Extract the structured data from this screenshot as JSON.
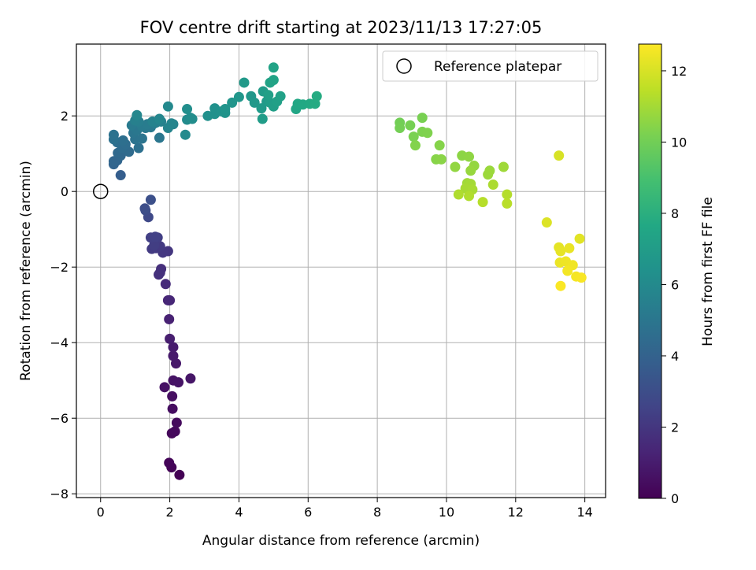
{
  "chart_data": {
    "type": "scatter",
    "title": "FOV centre drift starting at 2023/11/13 17:27:05",
    "xlabel": "Angular distance from reference (arcmin)",
    "ylabel": "Rotation from reference (arcmin)",
    "xlim": [
      -0.7,
      14.6
    ],
    "ylim": [
      -8.1,
      3.9
    ],
    "xticks": [
      "0",
      "2",
      "4",
      "6",
      "8",
      "10",
      "12",
      "14"
    ],
    "yticks": [
      "2",
      "0",
      "−2",
      "−4",
      "−6",
      "−8"
    ],
    "grid": true,
    "legend": {
      "placement": "top-right",
      "entries": [
        "Reference platepar"
      ]
    },
    "reference_point": {
      "x": 0,
      "y": 0,
      "marker": "open circle",
      "label": "Reference platepar"
    },
    "colorbar": {
      "label": "Hours from first FF file",
      "colormap": "viridis",
      "range": [
        0,
        12.75
      ],
      "ticks": [
        "0",
        "2",
        "4",
        "6",
        "8",
        "10",
        "12"
      ]
    },
    "points": [
      {
        "x": 2.28,
        "y": -7.5,
        "t": 0.05
      },
      {
        "x": 2.05,
        "y": -7.3,
        "t": 0.1
      },
      {
        "x": 1.98,
        "y": -7.18,
        "t": 0.15
      },
      {
        "x": 2.06,
        "y": -6.4,
        "t": 0.25
      },
      {
        "x": 2.15,
        "y": -6.35,
        "t": 0.3
      },
      {
        "x": 2.2,
        "y": -6.12,
        "t": 0.35
      },
      {
        "x": 2.08,
        "y": -5.75,
        "t": 0.45
      },
      {
        "x": 2.07,
        "y": -5.42,
        "t": 0.5
      },
      {
        "x": 1.85,
        "y": -5.18,
        "t": 0.6
      },
      {
        "x": 2.1,
        "y": -5.0,
        "t": 0.65
      },
      {
        "x": 2.25,
        "y": -5.05,
        "t": 0.7
      },
      {
        "x": 2.6,
        "y": -4.95,
        "t": 0.75
      },
      {
        "x": 2.18,
        "y": -4.55,
        "t": 0.85
      },
      {
        "x": 2.1,
        "y": -4.35,
        "t": 0.9
      },
      {
        "x": 2.1,
        "y": -4.12,
        "t": 0.95
      },
      {
        "x": 2.0,
        "y": -3.9,
        "t": 1.05
      },
      {
        "x": 1.98,
        "y": -3.38,
        "t": 1.2
      },
      {
        "x": 1.95,
        "y": -2.88,
        "t": 1.35
      },
      {
        "x": 2.0,
        "y": -2.88,
        "t": 1.4
      },
      {
        "x": 1.88,
        "y": -2.45,
        "t": 1.55
      },
      {
        "x": 1.75,
        "y": -2.05,
        "t": 1.7
      },
      {
        "x": 1.68,
        "y": -2.2,
        "t": 1.75
      },
      {
        "x": 1.72,
        "y": -2.15,
        "t": 1.8
      },
      {
        "x": 1.95,
        "y": -1.58,
        "t": 2.0
      },
      {
        "x": 1.8,
        "y": -1.62,
        "t": 2.05
      },
      {
        "x": 1.6,
        "y": -1.5,
        "t": 2.1
      },
      {
        "x": 1.72,
        "y": -1.45,
        "t": 2.15
      },
      {
        "x": 1.48,
        "y": -1.52,
        "t": 2.2
      },
      {
        "x": 1.55,
        "y": -1.42,
        "t": 2.3
      },
      {
        "x": 1.65,
        "y": -1.22,
        "t": 2.35
      },
      {
        "x": 1.45,
        "y": -1.22,
        "t": 2.4
      },
      {
        "x": 1.58,
        "y": -1.2,
        "t": 2.45
      },
      {
        "x": 1.38,
        "y": -0.68,
        "t": 2.8
      },
      {
        "x": 1.3,
        "y": -0.5,
        "t": 2.95
      },
      {
        "x": 1.28,
        "y": -0.45,
        "t": 3.0
      },
      {
        "x": 1.45,
        "y": -0.22,
        "t": 3.1
      },
      {
        "x": 0.58,
        "y": 0.43,
        "t": 3.8
      },
      {
        "x": 0.38,
        "y": 0.72,
        "t": 4.1
      },
      {
        "x": 0.48,
        "y": 0.82,
        "t": 4.15
      },
      {
        "x": 0.38,
        "y": 0.8,
        "t": 4.2
      },
      {
        "x": 0.58,
        "y": 0.95,
        "t": 4.3
      },
      {
        "x": 0.5,
        "y": 1.02,
        "t": 4.35
      },
      {
        "x": 0.82,
        "y": 1.05,
        "t": 4.45
      },
      {
        "x": 0.62,
        "y": 1.15,
        "t": 4.5
      },
      {
        "x": 0.72,
        "y": 1.25,
        "t": 4.55
      },
      {
        "x": 0.48,
        "y": 1.3,
        "t": 4.6
      },
      {
        "x": 0.65,
        "y": 1.35,
        "t": 4.65
      },
      {
        "x": 1.1,
        "y": 1.15,
        "t": 4.7
      },
      {
        "x": 0.38,
        "y": 1.38,
        "t": 4.75
      },
      {
        "x": 0.38,
        "y": 1.5,
        "t": 4.8
      },
      {
        "x": 1.0,
        "y": 1.38,
        "t": 4.85
      },
      {
        "x": 1.2,
        "y": 1.4,
        "t": 4.9
      },
      {
        "x": 0.95,
        "y": 1.55,
        "t": 4.95
      },
      {
        "x": 1.7,
        "y": 1.42,
        "t": 5.0
      },
      {
        "x": 1.05,
        "y": 1.62,
        "t": 5.05
      },
      {
        "x": 1.3,
        "y": 1.68,
        "t": 5.1
      },
      {
        "x": 1.45,
        "y": 1.7,
        "t": 5.15
      },
      {
        "x": 0.9,
        "y": 1.75,
        "t": 5.2
      },
      {
        "x": 1.2,
        "y": 1.72,
        "t": 5.25
      },
      {
        "x": 1.35,
        "y": 1.78,
        "t": 5.3
      },
      {
        "x": 1.55,
        "y": 1.8,
        "t": 5.35
      },
      {
        "x": 1.1,
        "y": 1.85,
        "t": 5.4
      },
      {
        "x": 1.6,
        "y": 1.82,
        "t": 5.45
      },
      {
        "x": 1.0,
        "y": 1.88,
        "t": 5.5
      },
      {
        "x": 1.75,
        "y": 1.85,
        "t": 5.55
      },
      {
        "x": 1.5,
        "y": 1.85,
        "t": 5.6
      },
      {
        "x": 2.1,
        "y": 1.78,
        "t": 5.65
      },
      {
        "x": 1.95,
        "y": 1.68,
        "t": 5.7
      },
      {
        "x": 2.05,
        "y": 1.8,
        "t": 5.75
      },
      {
        "x": 1.7,
        "y": 1.92,
        "t": 5.8
      },
      {
        "x": 1.05,
        "y": 2.02,
        "t": 5.85
      },
      {
        "x": 1.95,
        "y": 2.25,
        "t": 5.95
      },
      {
        "x": 2.45,
        "y": 1.5,
        "t": 6.0
      },
      {
        "x": 2.5,
        "y": 1.9,
        "t": 6.05
      },
      {
        "x": 2.6,
        "y": 1.95,
        "t": 6.1
      },
      {
        "x": 2.65,
        "y": 1.92,
        "t": 6.15
      },
      {
        "x": 2.5,
        "y": 2.18,
        "t": 6.2
      },
      {
        "x": 3.1,
        "y": 2.0,
        "t": 6.3
      },
      {
        "x": 3.3,
        "y": 2.05,
        "t": 6.35
      },
      {
        "x": 3.3,
        "y": 2.2,
        "t": 6.4
      },
      {
        "x": 3.5,
        "y": 2.12,
        "t": 6.45
      },
      {
        "x": 3.6,
        "y": 2.08,
        "t": 6.5
      },
      {
        "x": 3.6,
        "y": 2.18,
        "t": 6.55
      },
      {
        "x": 3.8,
        "y": 2.35,
        "t": 6.6
      },
      {
        "x": 4.0,
        "y": 2.5,
        "t": 6.65
      },
      {
        "x": 4.35,
        "y": 2.52,
        "t": 6.7
      },
      {
        "x": 4.45,
        "y": 2.35,
        "t": 6.75
      },
      {
        "x": 4.15,
        "y": 2.88,
        "t": 6.8
      },
      {
        "x": 4.65,
        "y": 2.2,
        "t": 6.85
      },
      {
        "x": 4.8,
        "y": 2.38,
        "t": 6.9
      },
      {
        "x": 4.7,
        "y": 2.65,
        "t": 6.95
      },
      {
        "x": 4.68,
        "y": 1.92,
        "t": 7.0
      },
      {
        "x": 4.9,
        "y": 2.35,
        "t": 7.05
      },
      {
        "x": 5.0,
        "y": 2.25,
        "t": 7.1
      },
      {
        "x": 4.85,
        "y": 2.55,
        "t": 7.15
      },
      {
        "x": 5.1,
        "y": 2.38,
        "t": 7.2
      },
      {
        "x": 5.2,
        "y": 2.52,
        "t": 7.25
      },
      {
        "x": 4.9,
        "y": 2.88,
        "t": 7.3
      },
      {
        "x": 5.0,
        "y": 2.95,
        "t": 7.35
      },
      {
        "x": 5.0,
        "y": 3.28,
        "t": 7.4
      },
      {
        "x": 5.65,
        "y": 2.18,
        "t": 7.55
      },
      {
        "x": 5.7,
        "y": 2.32,
        "t": 7.6
      },
      {
        "x": 5.85,
        "y": 2.3,
        "t": 7.65
      },
      {
        "x": 6.05,
        "y": 2.32,
        "t": 7.7
      },
      {
        "x": 6.2,
        "y": 2.32,
        "t": 7.75
      },
      {
        "x": 6.25,
        "y": 2.52,
        "t": 7.8
      },
      {
        "x": 8.65,
        "y": 1.82,
        "t": 10.0
      },
      {
        "x": 8.65,
        "y": 1.68,
        "t": 10.05
      },
      {
        "x": 8.95,
        "y": 1.75,
        "t": 10.1
      },
      {
        "x": 9.3,
        "y": 1.95,
        "t": 10.15
      },
      {
        "x": 9.05,
        "y": 1.45,
        "t": 10.2
      },
      {
        "x": 9.3,
        "y": 1.58,
        "t": 10.25
      },
      {
        "x": 9.45,
        "y": 1.55,
        "t": 10.3
      },
      {
        "x": 9.1,
        "y": 1.22,
        "t": 10.35
      },
      {
        "x": 9.8,
        "y": 1.22,
        "t": 10.4
      },
      {
        "x": 9.7,
        "y": 0.85,
        "t": 10.45
      },
      {
        "x": 9.85,
        "y": 0.85,
        "t": 10.5
      },
      {
        "x": 10.45,
        "y": 0.95,
        "t": 10.55
      },
      {
        "x": 10.65,
        "y": 0.92,
        "t": 10.6
      },
      {
        "x": 10.25,
        "y": 0.65,
        "t": 10.65
      },
      {
        "x": 10.8,
        "y": 0.68,
        "t": 10.7
      },
      {
        "x": 10.7,
        "y": 0.55,
        "t": 10.75
      },
      {
        "x": 11.25,
        "y": 0.55,
        "t": 10.8
      },
      {
        "x": 11.2,
        "y": 0.45,
        "t": 10.85
      },
      {
        "x": 11.65,
        "y": 0.65,
        "t": 10.9
      },
      {
        "x": 10.6,
        "y": 0.22,
        "t": 10.95
      },
      {
        "x": 10.7,
        "y": 0.2,
        "t": 11.0
      },
      {
        "x": 10.55,
        "y": 0.08,
        "t": 11.05
      },
      {
        "x": 10.75,
        "y": 0.05,
        "t": 11.1
      },
      {
        "x": 11.35,
        "y": 0.18,
        "t": 11.15
      },
      {
        "x": 10.35,
        "y": -0.08,
        "t": 11.2
      },
      {
        "x": 10.65,
        "y": -0.12,
        "t": 11.25
      },
      {
        "x": 11.75,
        "y": -0.08,
        "t": 11.3
      },
      {
        "x": 11.05,
        "y": -0.28,
        "t": 11.35
      },
      {
        "x": 11.75,
        "y": -0.32,
        "t": 11.4
      },
      {
        "x": 13.25,
        "y": 0.95,
        "t": 12.0
      },
      {
        "x": 12.9,
        "y": -0.82,
        "t": 12.1
      },
      {
        "x": 13.85,
        "y": -1.25,
        "t": 12.2
      },
      {
        "x": 13.25,
        "y": -1.48,
        "t": 12.25
      },
      {
        "x": 13.3,
        "y": -1.58,
        "t": 12.3
      },
      {
        "x": 13.55,
        "y": -1.5,
        "t": 12.35
      },
      {
        "x": 13.28,
        "y": -1.88,
        "t": 12.4
      },
      {
        "x": 13.45,
        "y": -1.85,
        "t": 12.45
      },
      {
        "x": 13.65,
        "y": -1.95,
        "t": 12.5
      },
      {
        "x": 13.5,
        "y": -2.1,
        "t": 12.55
      },
      {
        "x": 13.75,
        "y": -2.25,
        "t": 12.6
      },
      {
        "x": 13.9,
        "y": -2.28,
        "t": 12.65
      },
      {
        "x": 13.3,
        "y": -2.5,
        "t": 12.7
      }
    ]
  }
}
